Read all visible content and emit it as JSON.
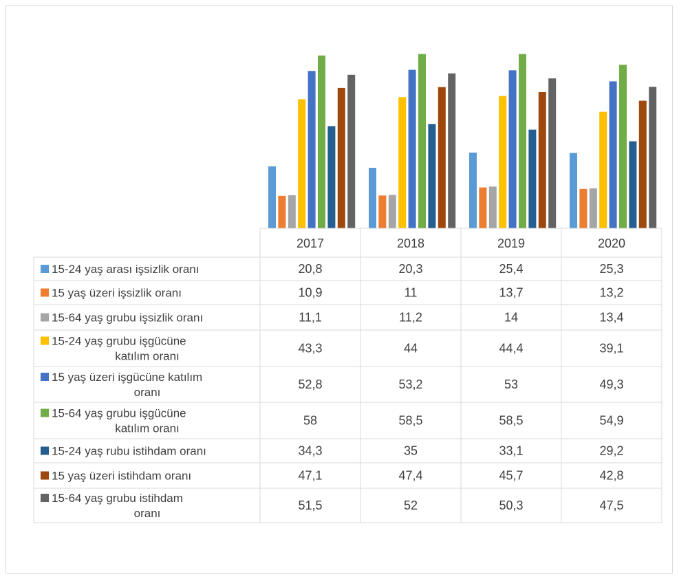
{
  "chart_data": {
    "type": "bar",
    "categories": [
      "2017",
      "2018",
      "2019",
      "2020"
    ],
    "ylim": [
      0,
      60
    ],
    "grid": false,
    "legend": "data-table",
    "series": [
      {
        "name": "15-24 yaş arası işsizlik oranı",
        "label_lines": [
          "15-24 yaş arası işsizlik oranı"
        ],
        "color": "#5B9BD5",
        "values": [
          20.8,
          20.3,
          25.4,
          25.3
        ],
        "labels": [
          "20,8",
          "20,3",
          "25,4",
          "25,3"
        ]
      },
      {
        "name": "15 yaş üzeri işsizlik oranı",
        "label_lines": [
          "15 yaş üzeri işsizlik oranı"
        ],
        "color": "#ED7D31",
        "values": [
          10.9,
          11,
          13.7,
          13.2
        ],
        "labels": [
          "10,9",
          "11",
          "13,7",
          "13,2"
        ]
      },
      {
        "name": "15-64 yaş grubu işsizlik oranı",
        "label_lines": [
          "15-64 yaş grubu işsizlik oranı"
        ],
        "color": "#A5A5A5",
        "values": [
          11.1,
          11.2,
          14,
          13.4
        ],
        "labels": [
          "11,1",
          "11,2",
          "14",
          "13,4"
        ]
      },
      {
        "name": "15-24 yaş grubu işgücüne katılım oranı",
        "label_lines": [
          "15-24 yaş grubu işgücüne",
          "katılım oranı"
        ],
        "color": "#FFC000",
        "values": [
          43.3,
          44,
          44.4,
          39.1
        ],
        "labels": [
          "43,3",
          "44",
          "44,4",
          "39,1"
        ]
      },
      {
        "name": "15 yaş üzeri işgücüne katılım oranı",
        "label_lines": [
          "15 yaş üzeri işgücüne katılım",
          "oranı"
        ],
        "color": "#4472C4",
        "values": [
          52.8,
          53.2,
          53,
          49.3
        ],
        "labels": [
          "52,8",
          "53,2",
          "53",
          "49,3"
        ]
      },
      {
        "name": "15-64 yaş grubu işgücüne katılım oranı",
        "label_lines": [
          "15-64 yaş grubu işgücüne",
          "katılım oranı"
        ],
        "color": "#70AD47",
        "values": [
          58,
          58.5,
          58.5,
          54.9
        ],
        "labels": [
          "58",
          "58,5",
          "58,5",
          "54,9"
        ]
      },
      {
        "name": "15-24 yaş rubu istihdam oranı",
        "label_lines": [
          "15-24 yaş rubu istihdam oranı"
        ],
        "color": "#255E91",
        "values": [
          34.3,
          35,
          33.1,
          29.2
        ],
        "labels": [
          "34,3",
          "35",
          "33,1",
          "29,2"
        ]
      },
      {
        "name": "15 yaş üzeri istihdam oranı",
        "label_lines": [
          "15 yaş üzeri istihdam oranı"
        ],
        "color": "#9E480E",
        "values": [
          47.1,
          47.4,
          45.7,
          42.8
        ],
        "labels": [
          "47,1",
          "47,4",
          "45,7",
          "42,8"
        ]
      },
      {
        "name": "15-64 yaş grubu istihdam oranı",
        "label_lines": [
          "15-64 yaş grubu istihdam",
          "oranı"
        ],
        "color": "#636363",
        "values": [
          51.5,
          52,
          50.3,
          47.5
        ],
        "labels": [
          "51,5",
          "52",
          "50,3",
          "47,5"
        ]
      }
    ]
  }
}
